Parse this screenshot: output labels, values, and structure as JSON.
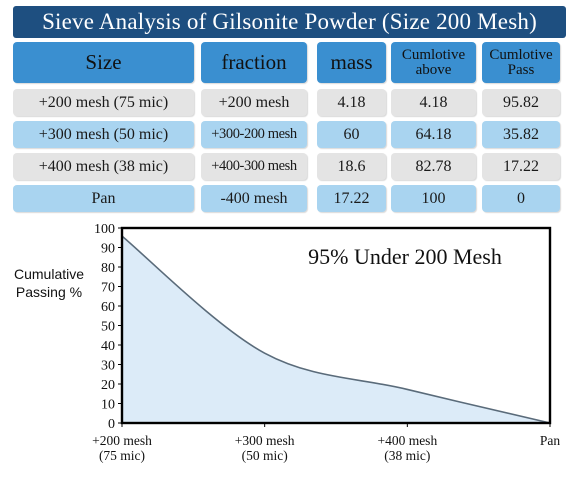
{
  "title": "Sieve Analysis of Gilsonite Powder (Size 200 Mesh)",
  "table": {
    "headers": [
      "Size",
      "fraction",
      "mass",
      "Cumlotive above",
      "Cumlotive Pass"
    ],
    "header_lines": {
      "cum_above": [
        "Cumlotive",
        "above"
      ],
      "cum_pass": [
        "Cumlotive",
        "Pass"
      ]
    },
    "rows": [
      [
        "+200 mesh (75 mic)",
        "+200 mesh",
        "4.18",
        "4.18",
        "95.82"
      ],
      [
        "+300 mesh (50 mic)",
        "+300-200 mesh",
        "60",
        "64.18",
        "35.82"
      ],
      [
        "+400 mesh (38 mic)",
        "+400-300 mesh",
        "18.6",
        "82.78",
        "17.22"
      ],
      [
        "Pan",
        "-400 mesh",
        "17.22",
        "100",
        "0"
      ]
    ],
    "colors": {
      "title_bg": "#1e4f80",
      "header_bg": "#3a8fd0",
      "row_grey": "#e4e4e4",
      "row_blue": "#a9d4f0"
    }
  },
  "chart_data": {
    "type": "area",
    "title": "",
    "annotation": "95% Under 200 Mesh",
    "ylabel": "Cumulative Passing %",
    "xlabel": "",
    "ylim": [
      0,
      100
    ],
    "yticks": [
      0,
      10,
      20,
      30,
      40,
      50,
      60,
      70,
      80,
      90,
      100
    ],
    "categories": [
      [
        "+200 mesh",
        "(75 mic)"
      ],
      [
        "+300 mesh",
        "(50 mic)"
      ],
      [
        "+400 mesh",
        "(38 mic)"
      ],
      [
        "Pan"
      ]
    ],
    "series": [
      {
        "values": [
          95.82,
          35.82,
          17.22,
          0
        ]
      }
    ],
    "fill_color": "#dcebf8",
    "line_color": "#5a6b7a",
    "grid": false
  }
}
